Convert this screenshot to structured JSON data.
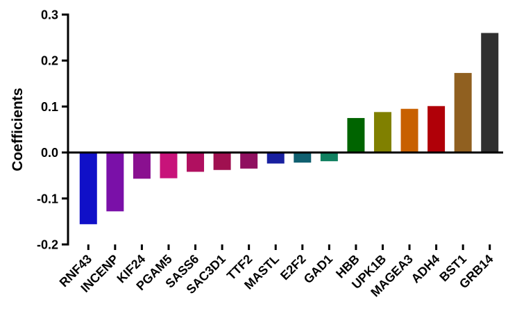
{
  "chart_data": {
    "type": "bar",
    "title": "",
    "xlabel": "",
    "ylabel": "Coefficients",
    "ylim": [
      -0.2,
      0.3
    ],
    "yticks": [
      "0.3",
      "0.2",
      "0.1",
      "0.0",
      "-0.1",
      "-0.2"
    ],
    "ytick_values": [
      0.3,
      0.2,
      0.1,
      0.0,
      -0.1,
      -0.2
    ],
    "grid": false,
    "legend": "none",
    "categories": [
      "RNF43",
      "INCENP",
      "KIF24",
      "PGAM5",
      "SASS6",
      "SAC3D1",
      "TTF2",
      "MASTL",
      "E2F2",
      "GAD1",
      "HBB",
      "UPK1B",
      "MAGEA3",
      "ADH4",
      "BST1",
      "GRB14"
    ],
    "values": [
      -0.156,
      -0.128,
      -0.057,
      -0.056,
      -0.042,
      -0.038,
      -0.035,
      -0.024,
      -0.022,
      -0.019,
      0.075,
      0.088,
      0.095,
      0.101,
      0.173,
      0.26
    ],
    "colors": [
      "#1010c8",
      "#7a10a8",
      "#8a1090",
      "#c8137a",
      "#b01060",
      "#a01050",
      "#901060",
      "#1820a0",
      "#106070",
      "#108060",
      "#006400",
      "#808000",
      "#c86000",
      "#b00008",
      "#906020",
      "#303030"
    ]
  }
}
